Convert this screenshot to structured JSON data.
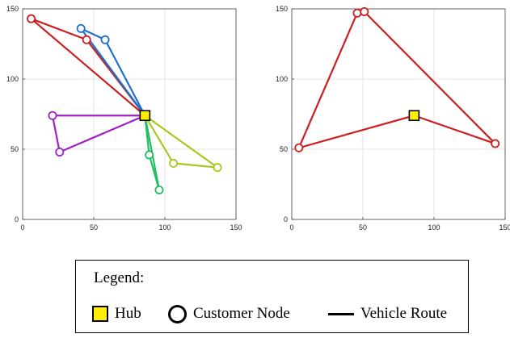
{
  "colors": {
    "route_red": "#cc1f1f",
    "route_blue": "#1f6fd0",
    "route_purple": "#a020c8",
    "route_green": "#20c060",
    "route_lime": "#a8c81e",
    "hub_fill": "#ffee00",
    "node_fill": "#ffffff"
  },
  "chart_data": [
    {
      "type": "scatter",
      "title": "",
      "xlabel": "",
      "ylabel": "",
      "xlim": [
        0,
        150
      ],
      "ylim": [
        0,
        150
      ],
      "xticks": [
        "0",
        "50",
        "100",
        "150"
      ],
      "yticks": [
        "0",
        "50",
        "100",
        "150"
      ],
      "grid": true,
      "hub": {
        "x": 86,
        "y": 74
      },
      "routes": [
        {
          "color": "#cc1f1f",
          "points": [
            [
              86,
              74
            ],
            [
              6,
              143
            ],
            [
              45,
              128
            ],
            [
              86,
              74
            ]
          ]
        },
        {
          "color": "#1f6fd0",
          "points": [
            [
              86,
              74
            ],
            [
              41,
              136
            ],
            [
              58,
              128
            ],
            [
              86,
              74
            ]
          ]
        },
        {
          "color": "#a020c8",
          "points": [
            [
              86,
              74
            ],
            [
              21,
              74
            ],
            [
              26,
              48
            ],
            [
              86,
              74
            ]
          ]
        },
        {
          "color": "#20c060",
          "points": [
            [
              86,
              74
            ],
            [
              89,
              46
            ],
            [
              96,
              21
            ],
            [
              86,
              74
            ]
          ]
        },
        {
          "color": "#a8c81e",
          "points": [
            [
              86,
              74
            ],
            [
              106,
              40
            ],
            [
              137,
              37
            ],
            [
              86,
              74
            ]
          ]
        }
      ]
    },
    {
      "type": "scatter",
      "title": "",
      "xlabel": "",
      "ylabel": "",
      "xlim": [
        0,
        150
      ],
      "ylim": [
        0,
        150
      ],
      "xticks": [
        "0",
        "50",
        "100",
        "150"
      ],
      "yticks": [
        "0",
        "50",
        "100",
        "150"
      ],
      "grid": true,
      "hub": {
        "x": 86,
        "y": 74
      },
      "routes": [
        {
          "color": "#cc1f1f",
          "points": [
            [
              86,
              74
            ],
            [
              5,
              51
            ],
            [
              46,
              147
            ],
            [
              51,
              148
            ],
            [
              143,
              54
            ],
            [
              86,
              74
            ]
          ]
        }
      ]
    }
  ],
  "legend": {
    "title": "Legend:",
    "hub_label": "Hub",
    "node_label": "Customer Node",
    "route_label": "Vehicle Route"
  }
}
